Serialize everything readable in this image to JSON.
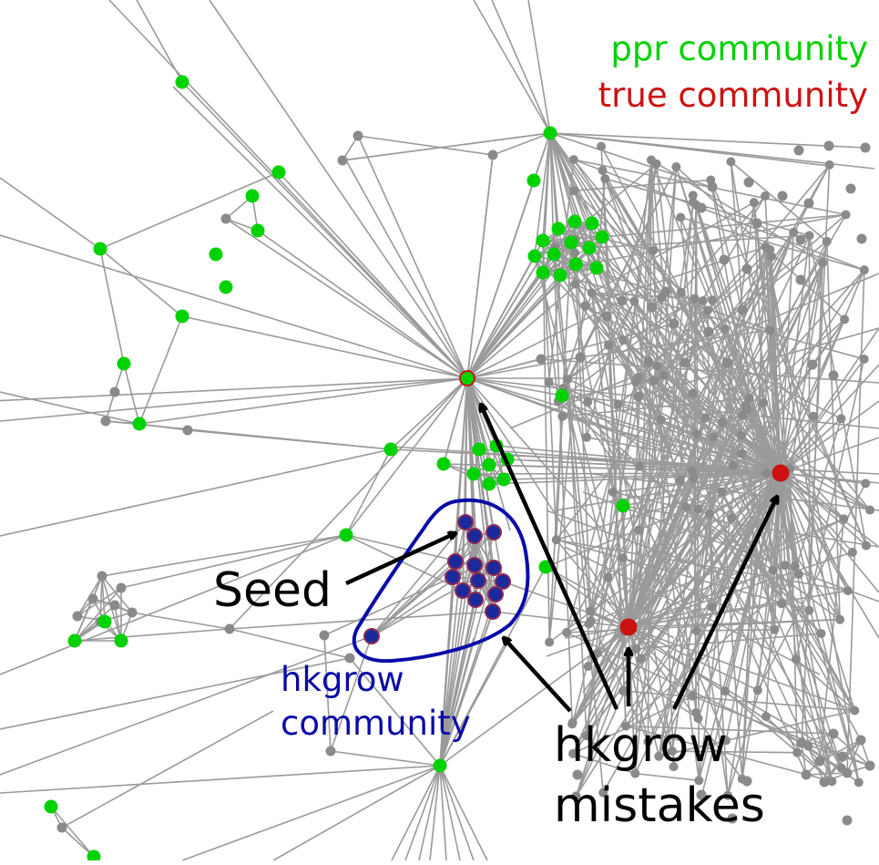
{
  "legend": {
    "ppr": "ppr community",
    "true": "true community"
  },
  "annotations": {
    "seed": "Seed",
    "hkgrow_line1": "hkgrow",
    "hkgrow_line2": "community",
    "mistakes_line1": "hkgrow",
    "mistakes_line2": "mistakes"
  },
  "colors": {
    "edge": "#9a9a9a",
    "grey_node": "#8a8a8a",
    "ppr": "#00d200",
    "true": "#cc1111",
    "hkgrow": "#0a0aa8",
    "hkgrow_node": "#1a2a9c",
    "arrow": "#000000"
  }
}
